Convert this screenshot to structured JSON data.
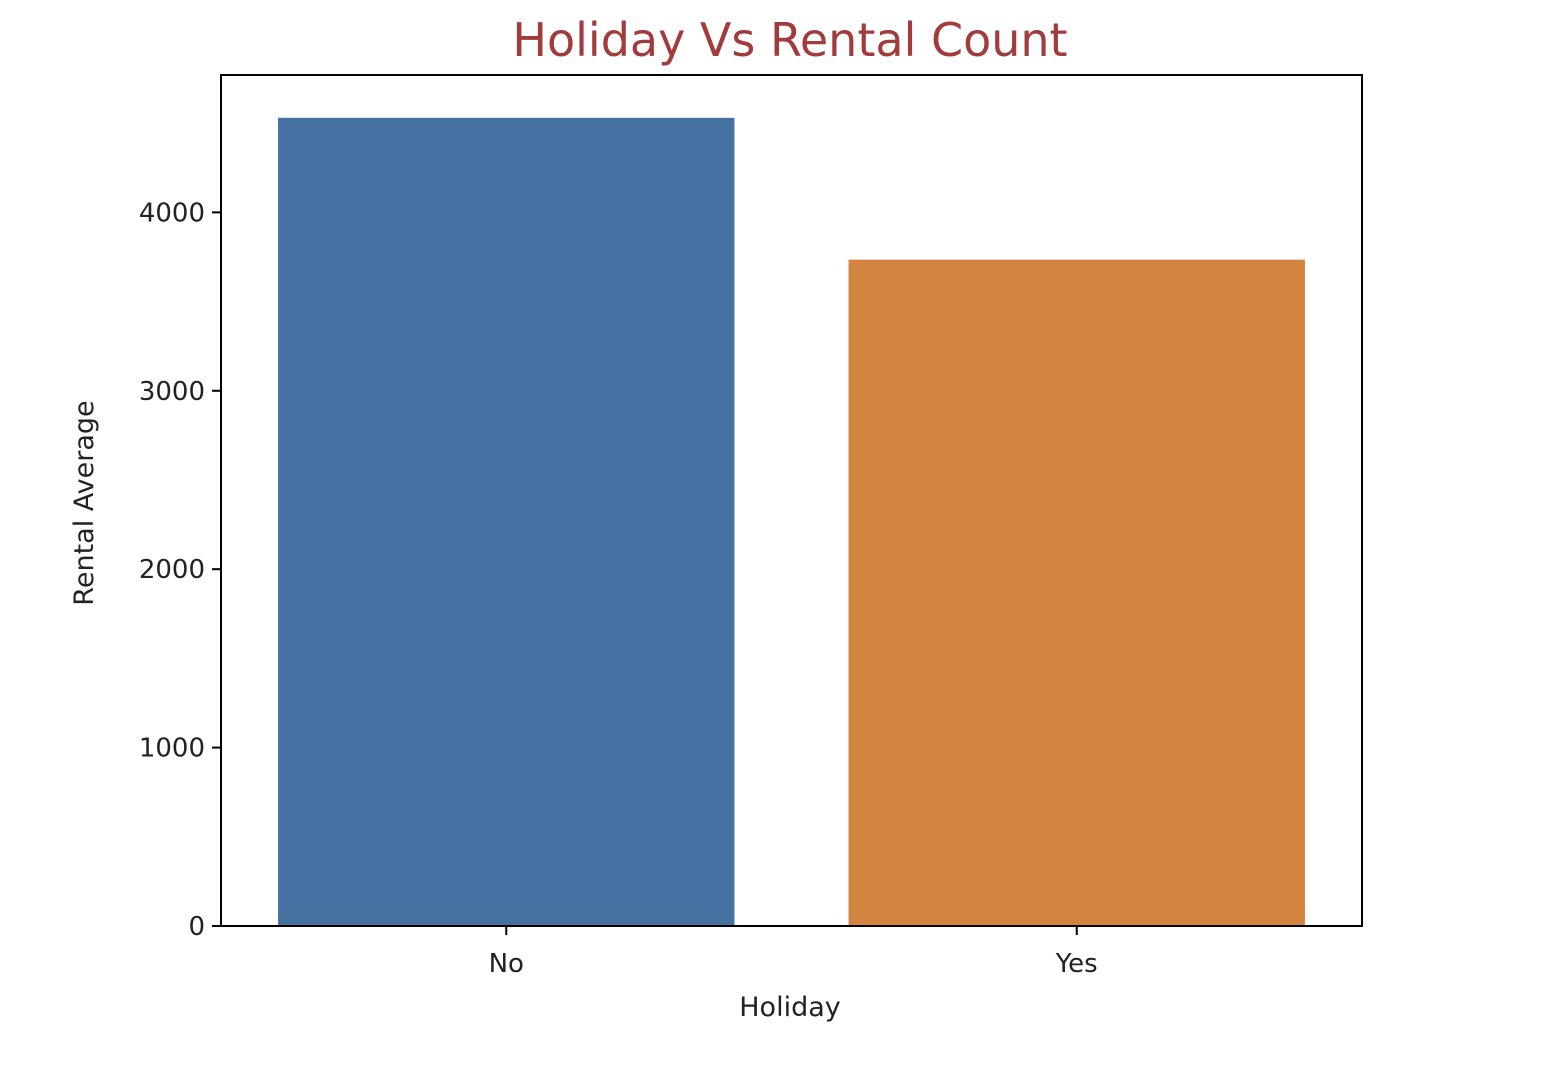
{
  "chart_data": {
    "type": "bar",
    "title": "Holiday Vs Rental Count",
    "xlabel": "Holiday",
    "ylabel": "Rental Average",
    "categories": [
      "No",
      "Yes"
    ],
    "values": [
      4530,
      3735
    ],
    "ylim": [
      0,
      4770
    ],
    "yticks": [
      0,
      1000,
      2000,
      3000,
      4000
    ],
    "grid": false,
    "legend": "none"
  },
  "colors": {
    "title": "#a23b3b",
    "bars": [
      "#4571a0",
      "#d38540"
    ],
    "axis": "#000000",
    "background": "#ffffff"
  }
}
